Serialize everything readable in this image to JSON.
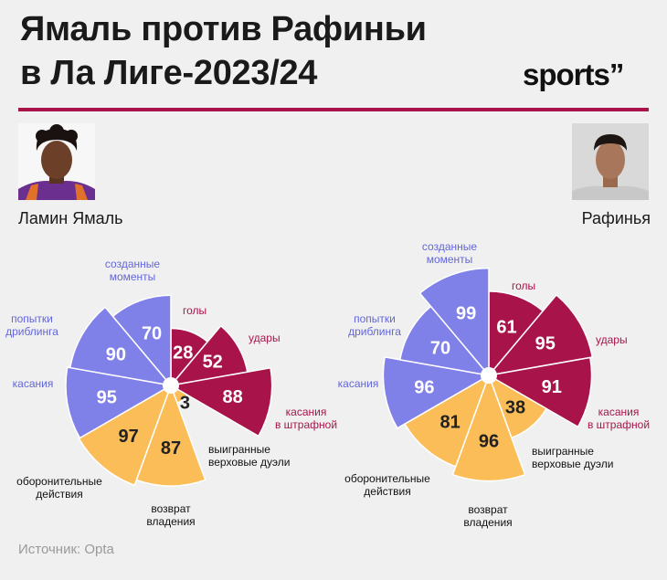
{
  "title": {
    "line1": "Ямаль против Рафиньи",
    "line2": "в Ла Лиге-2023/24"
  },
  "logo": "sports”",
  "players": {
    "left": {
      "name": "Ламин Ямаль"
    },
    "right": {
      "name": "Рафинья"
    }
  },
  "source": "Источник: Opta",
  "colors": {
    "attack": "#a8144a",
    "possession": "#8081e8",
    "defence": "#fbbd57",
    "rule": "#a8144a",
    "attack_label": "#a8144a",
    "possession_label": "#6366d9",
    "defence_label": "#111111"
  },
  "chart_data": [
    {
      "type": "polar_area",
      "player": "Ламин Ямаль",
      "categories": [
        "голы",
        "удары",
        "касания в штрафной",
        "выигранные верховые дуэли",
        "возврат владения",
        "оборонительные действия",
        "касания",
        "попытки дриблинга",
        "созданные моменты"
      ],
      "groups": [
        "attack",
        "attack",
        "attack",
        "defence",
        "defence",
        "defence",
        "possession",
        "possession",
        "possession"
      ],
      "values": [
        28,
        52,
        88,
        3,
        87,
        97,
        95,
        90,
        70
      ],
      "rlim": [
        0,
        100
      ]
    },
    {
      "type": "polar_area",
      "player": "Рафинья",
      "categories": [
        "голы",
        "удары",
        "касания в штрафной",
        "выигранные верховые дуэли",
        "возврат владения",
        "оборонительные действия",
        "касания",
        "попытки дриблинга",
        "созданные моменты"
      ],
      "groups": [
        "attack",
        "attack",
        "attack",
        "defence",
        "defence",
        "defence",
        "possession",
        "possession",
        "possession"
      ],
      "values": [
        61,
        95,
        91,
        38,
        96,
        81,
        96,
        70,
        99
      ],
      "rlim": [
        0,
        100
      ]
    }
  ],
  "labels": {
    "left": [
      [
        "голы"
      ],
      [
        "удары"
      ],
      [
        "касания",
        "в штрафной"
      ],
      [
        "выигранные",
        "верховые дуэли"
      ],
      [
        "возврат",
        "владения"
      ],
      [
        "оборонительные",
        "действия"
      ],
      [
        "касания"
      ],
      [
        "попытки",
        "дриблинга"
      ],
      [
        "созданные",
        "моменты"
      ]
    ],
    "right": [
      [
        "голы"
      ],
      [
        "удары"
      ],
      [
        "касания",
        "в штрафной"
      ],
      [
        "выигранные",
        "верховые дуэли"
      ],
      [
        "возврат",
        "владения"
      ],
      [
        "оборонительные",
        "действия"
      ],
      [
        "касания"
      ],
      [
        "попытки",
        "дриблинга"
      ],
      [
        "созданные",
        "моменты"
      ]
    ]
  }
}
